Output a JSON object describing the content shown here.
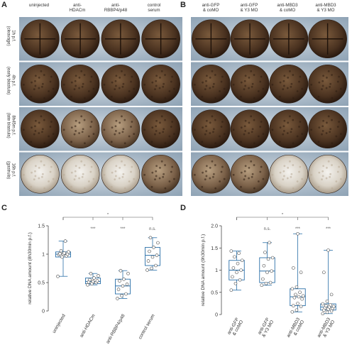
{
  "figure": {
    "panel_a": {
      "letter": "A",
      "columns": [
        "uninjected",
        "anti-\nHDACm",
        "anti-\nRBBP4/p48",
        "control\nserum"
      ],
      "rows": [
        "1h p.f.\n(cleavage)",
        "4h p.f.\n(early blastula)",
        "8h45m p.f.\n(late blastula)",
        "16h p.f.\n(gastrula)"
      ]
    },
    "panel_b": {
      "letter": "B",
      "columns": [
        "anti-GFP\n& coMO",
        "anti-GFP\n& Y3 MO",
        "anti-MBD3\n& coMO",
        "anti-MBD3\n& Y3 MO"
      ]
    },
    "panel_c": {
      "letter": "C"
    },
    "panel_d": {
      "letter": "D"
    }
  },
  "chart_data": [
    {
      "type": "box",
      "panel": "C",
      "ylabel": "relative DNA amount (8h30min p.f.)",
      "ylim": [
        0,
        1.5
      ],
      "yticks": [
        "0",
        "0.5",
        "1",
        "1.5"
      ],
      "categories": [
        "uninjected",
        "anti-HDACm",
        "anti-RBBP4/p48",
        "control serum"
      ],
      "boxes": [
        {
          "whislo": 0.61,
          "q1": 0.95,
          "med": 1.0,
          "q3": 1.04,
          "whishi": 1.23
        },
        {
          "whislo": 0.46,
          "q1": 0.48,
          "med": 0.52,
          "q3": 0.58,
          "whishi": 0.66
        },
        {
          "whislo": 0.22,
          "q1": 0.3,
          "med": 0.44,
          "q3": 0.56,
          "whishi": 0.71
        },
        {
          "whislo": 0.72,
          "q1": 0.8,
          "med": 0.98,
          "q3": 1.12,
          "whishi": 1.29
        }
      ],
      "points": [
        [
          0.61,
          0.95,
          0.97,
          0.99,
          1.0,
          1.0,
          1.01,
          1.02,
          1.04,
          1.06,
          1.23
        ],
        [
          0.46,
          0.48,
          0.5,
          0.51,
          0.52,
          0.53,
          0.55,
          0.58,
          0.62,
          0.66
        ],
        [
          0.22,
          0.27,
          0.3,
          0.38,
          0.44,
          0.47,
          0.53,
          0.56,
          0.66,
          0.71
        ],
        [
          0.72,
          0.75,
          0.8,
          0.88,
          0.95,
          0.98,
          1.05,
          1.12,
          1.2,
          1.29
        ]
      ],
      "significance": [
        "***",
        "***",
        "n.s."
      ],
      "comparison_label": "*"
    },
    {
      "type": "box",
      "panel": "D",
      "ylabel": "relative DNA amount (9h30min p.f.)",
      "ylim": [
        0,
        2.0
      ],
      "yticks": [
        "0",
        "0.5",
        "1",
        "1.5",
        "2.0"
      ],
      "categories": [
        "anti-GFP\n& coMO",
        "anti-GFP\n& Y3 MO",
        "anti-MBD3\n& coMO",
        "anti-MBD3\n& Y3 MO"
      ],
      "boxes": [
        {
          "whislo": 0.55,
          "q1": 0.78,
          "med": 1.0,
          "q3": 1.22,
          "whishi": 1.43
        },
        {
          "whislo": 0.66,
          "q1": 0.72,
          "med": 0.98,
          "q3": 1.28,
          "whishi": 1.62
        },
        {
          "whislo": 0.06,
          "q1": 0.2,
          "med": 0.4,
          "q3": 0.58,
          "whishi": 1.82
        },
        {
          "whislo": 0.02,
          "q1": 0.1,
          "med": 0.17,
          "q3": 0.24,
          "whishi": 1.45
        }
      ],
      "points": [
        [
          0.55,
          0.7,
          0.78,
          0.85,
          0.95,
          1.0,
          1.05,
          1.15,
          1.22,
          1.3,
          1.38,
          1.43
        ],
        [
          0.66,
          0.7,
          0.72,
          0.8,
          0.95,
          0.98,
          1.1,
          1.25,
          1.28,
          1.4,
          1.62
        ],
        [
          0.06,
          0.1,
          0.18,
          0.2,
          0.25,
          0.35,
          0.38,
          0.4,
          0.42,
          0.45,
          0.5,
          0.58,
          0.62,
          0.95,
          1.05,
          1.82
        ],
        [
          0.02,
          0.05,
          0.08,
          0.1,
          0.12,
          0.14,
          0.15,
          0.17,
          0.18,
          0.2,
          0.22,
          0.24,
          0.3,
          0.45,
          0.95,
          1.45
        ]
      ],
      "significance": [
        "n.s.",
        "***",
        "***"
      ],
      "comparison_label": "*"
    }
  ]
}
